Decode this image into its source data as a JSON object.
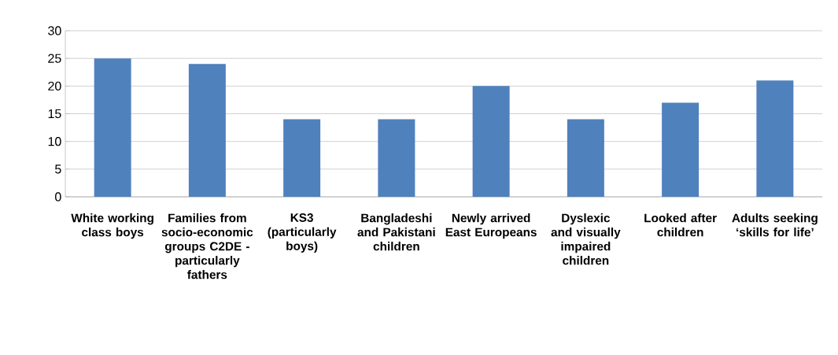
{
  "chart_data": {
    "type": "bar",
    "categories": [
      "White working class boys",
      "Families from socio-economic groups C2DE - particularly fathers",
      "KS3 (particularly boys)",
      "Bangladeshi and Pakistani children",
      "Newly arrived East Europeans",
      "Dyslexic and visually impaired children",
      "Looked after children",
      "Adults seeking ‘skills for life’"
    ],
    "values": [
      25,
      24,
      14,
      14,
      20,
      14,
      17,
      21
    ],
    "color": "#4f81bd",
    "ylim": [
      0,
      30
    ],
    "yticks": [
      0,
      5,
      10,
      15,
      20,
      25,
      30
    ],
    "grid": "y"
  }
}
